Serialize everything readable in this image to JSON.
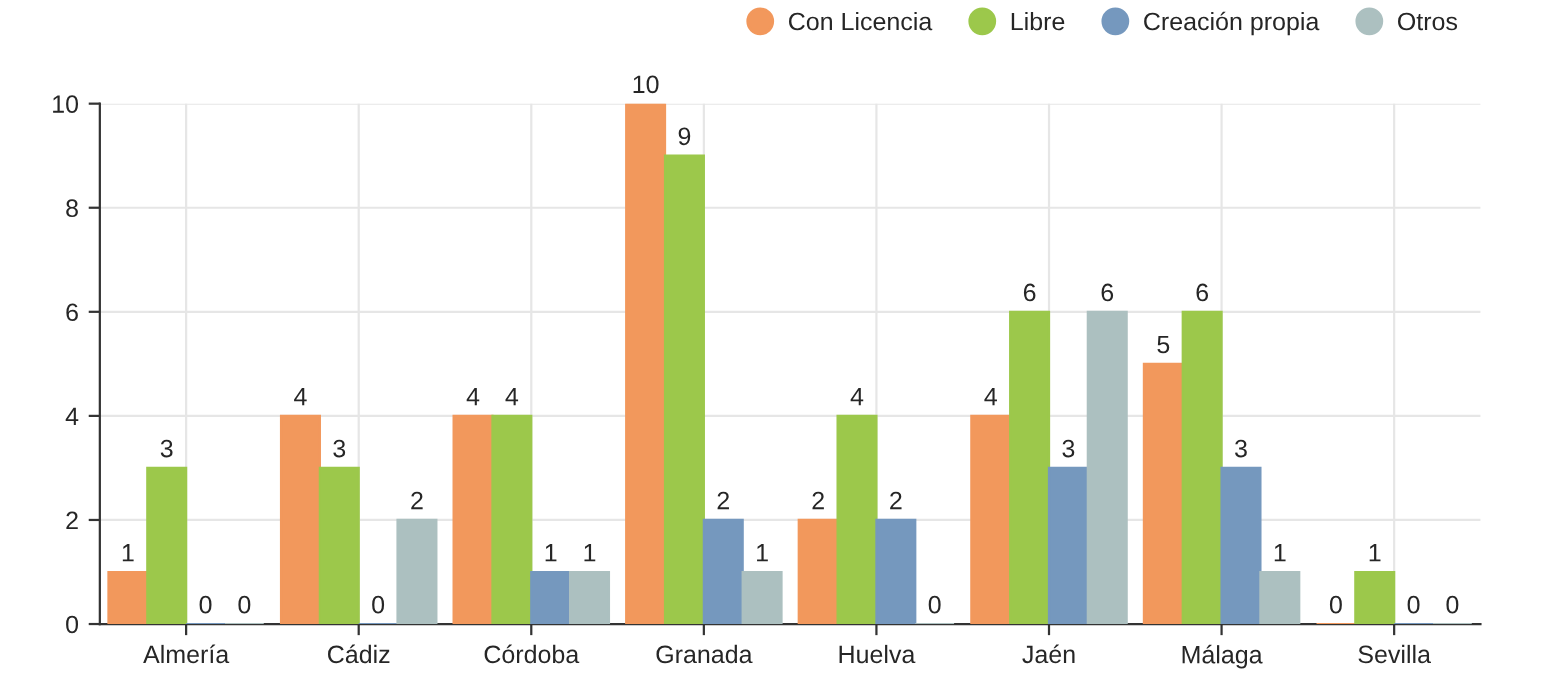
{
  "chart_data": {
    "type": "bar",
    "categories": [
      "Almería",
      "Cádiz",
      "Córdoba",
      "Granada",
      "Huelva",
      "Jaén",
      "Málaga",
      "Sevilla"
    ],
    "series": [
      {
        "name": "Con Licencia",
        "color": "#f2985c",
        "values": [
          1,
          4,
          4,
          10,
          2,
          4,
          5,
          0
        ]
      },
      {
        "name": "Libre",
        "color": "#9cc84b",
        "values": [
          3,
          3,
          4,
          9,
          4,
          6,
          6,
          1
        ]
      },
      {
        "name": "Creación propia",
        "color": "#7598be",
        "values": [
          0,
          0,
          1,
          2,
          2,
          3,
          3,
          0
        ]
      },
      {
        "name": "Otros",
        "color": "#acc0c0",
        "values": [
          0,
          2,
          1,
          1,
          0,
          6,
          1,
          0
        ]
      }
    ],
    "ylim": [
      0,
      10
    ],
    "yticks": [
      0,
      2,
      4,
      6,
      8,
      10
    ],
    "grid": true,
    "legend": "top right",
    "data_labels": true
  }
}
